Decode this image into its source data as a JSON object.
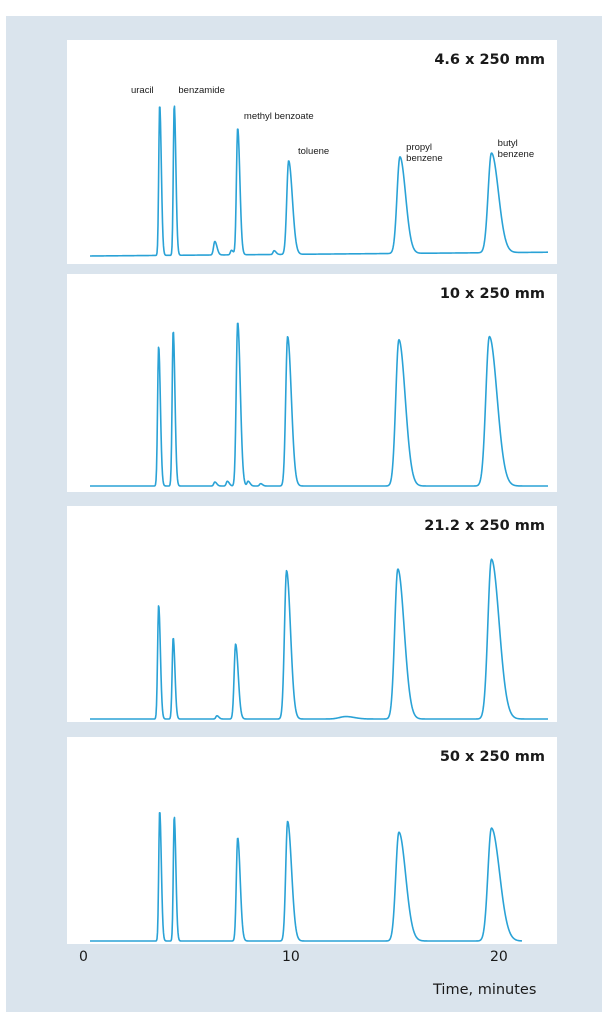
{
  "colors": {
    "trace": "#2aa2d6",
    "background": "#dae4ed",
    "panel": "#ffffff",
    "tick": "#555555"
  },
  "chart_data": {
    "type": "line",
    "xlabel": "Time, minutes",
    "xlim": [
      0,
      22
    ],
    "xticks": [
      0,
      10,
      20
    ],
    "xtick_labels": [
      "0",
      "10",
      "20"
    ],
    "panels": [
      {
        "title": "4.6 x 250 mm",
        "baseline": 0.02,
        "drift": 0.025,
        "peaks": [
          {
            "x": 3.35,
            "height": 1.0,
            "width": 0.045,
            "tail": 0.015
          },
          {
            "x": 4.05,
            "height": 1.0,
            "width": 0.045,
            "tail": 0.015
          },
          {
            "x": 6.0,
            "height": 0.09,
            "width": 0.06,
            "tail": 0.02
          },
          {
            "x": 6.8,
            "height": 0.03,
            "width": 0.05,
            "tail": 0.02
          },
          {
            "x": 7.1,
            "height": 0.84,
            "width": 0.06,
            "tail": 0.02
          },
          {
            "x": 8.85,
            "height": 0.025,
            "width": 0.05,
            "tail": 0.02
          },
          {
            "x": 9.55,
            "height": 0.62,
            "width": 0.09,
            "tail": 0.04
          },
          {
            "x": 14.9,
            "height": 0.64,
            "width": 0.14,
            "tail": 0.06
          },
          {
            "x": 19.3,
            "height": 0.66,
            "width": 0.16,
            "tail": 0.08
          }
        ],
        "annotations": [
          {
            "x": 3.35,
            "lines": [
              "uracil"
            ],
            "anchor": "end"
          },
          {
            "x": 4.25,
            "lines": [
              "benzamide"
            ],
            "anchor": "start"
          },
          {
            "x": 7.4,
            "lines": [
              "methyl benzoate"
            ],
            "anchor": "start"
          },
          {
            "x": 10.0,
            "lines": [
              "toluene"
            ],
            "anchor": "start"
          },
          {
            "x": 15.2,
            "lines": [
              "propyl",
              "benzene"
            ],
            "anchor": "start"
          },
          {
            "x": 19.6,
            "lines": [
              "butyl",
              "benzene"
            ],
            "anchor": "start"
          }
        ]
      },
      {
        "title": "10 x 250 mm",
        "baseline": 0.02,
        "drift": 0.0,
        "peaks": [
          {
            "x": 3.3,
            "height": 0.88,
            "width": 0.05,
            "tail": 0.015
          },
          {
            "x": 4.0,
            "height": 0.98,
            "width": 0.05,
            "tail": 0.015
          },
          {
            "x": 6.0,
            "height": 0.025,
            "width": 0.05,
            "tail": 0.02
          },
          {
            "x": 6.6,
            "height": 0.03,
            "width": 0.05,
            "tail": 0.02
          },
          {
            "x": 7.1,
            "height": 1.03,
            "width": 0.07,
            "tail": 0.025
          },
          {
            "x": 7.6,
            "height": 0.03,
            "width": 0.05,
            "tail": 0.02
          },
          {
            "x": 8.2,
            "height": 0.015,
            "width": 0.05,
            "tail": 0.02
          },
          {
            "x": 9.5,
            "height": 0.94,
            "width": 0.09,
            "tail": 0.04
          },
          {
            "x": 14.85,
            "height": 0.92,
            "width": 0.15,
            "tail": 0.07
          },
          {
            "x": 19.2,
            "height": 0.94,
            "width": 0.17,
            "tail": 0.09
          }
        ],
        "annotations": []
      },
      {
        "title": "21.2 x 250 mm",
        "baseline": 0.02,
        "drift": 0.0,
        "peaks": [
          {
            "x": 3.3,
            "height": 0.7,
            "width": 0.05,
            "tail": 0.015
          },
          {
            "x": 4.0,
            "height": 0.5,
            "width": 0.05,
            "tail": 0.015
          },
          {
            "x": 6.1,
            "height": 0.02,
            "width": 0.05,
            "tail": 0.02
          },
          {
            "x": 7.0,
            "height": 0.46,
            "width": 0.07,
            "tail": 0.025
          },
          {
            "x": 9.45,
            "height": 0.91,
            "width": 0.1,
            "tail": 0.04
          },
          {
            "x": 12.3,
            "height": 0.015,
            "width": 0.3,
            "tail": 0.05
          },
          {
            "x": 14.8,
            "height": 0.92,
            "width": 0.15,
            "tail": 0.07
          },
          {
            "x": 19.3,
            "height": 0.98,
            "width": 0.17,
            "tail": 0.09
          }
        ],
        "annotations": []
      },
      {
        "title": "50 x 250 mm",
        "baseline": 0.02,
        "drift": 0.0,
        "peaks": [
          {
            "x": 3.35,
            "height": 0.96,
            "width": 0.045,
            "tail": 0.015
          },
          {
            "x": 4.05,
            "height": 0.92,
            "width": 0.045,
            "tail": 0.015
          },
          {
            "x": 7.1,
            "height": 0.76,
            "width": 0.065,
            "tail": 0.025
          },
          {
            "x": 9.5,
            "height": 0.88,
            "width": 0.09,
            "tail": 0.045
          },
          {
            "x": 14.85,
            "height": 0.8,
            "width": 0.15,
            "tail": 0.08
          },
          {
            "x": 19.3,
            "height": 0.83,
            "width": 0.17,
            "tail": 0.1
          }
        ],
        "annotations": []
      }
    ]
  }
}
